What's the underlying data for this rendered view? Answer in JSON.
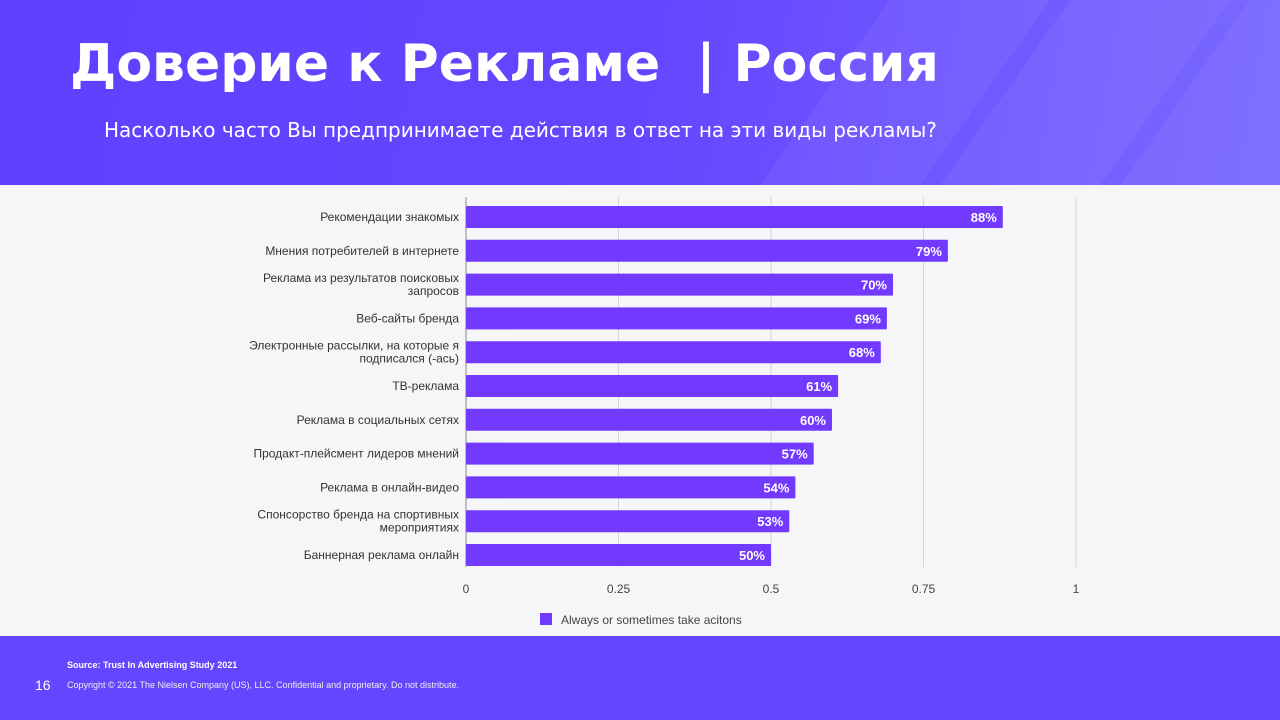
{
  "header": {
    "title": "Доверие к Рекламе  | Россия",
    "subtitle": "Насколько часто Вы предпринимаете действия в ответ на эти виды рекламы?"
  },
  "footer": {
    "source": "Source: Trust In Advertising Study 2021",
    "copyright": "Copyright © 2021 The Nielsen Company (US), LLC. Confidential and proprietary. Do not distribute.",
    "page_number": "16"
  },
  "colors": {
    "bar": "#7239fe",
    "header": "#6446ff"
  },
  "chart_data": {
    "type": "bar",
    "orientation": "horizontal",
    "categories": [
      [
        "Рекомендации знакомых"
      ],
      [
        "Мнения потребителей в интернете"
      ],
      [
        "Реклама из результатов поисковых",
        "запросов"
      ],
      [
        "Веб-сайты бренда"
      ],
      [
        "Электронные рассылки, на которые я",
        "подписался (-ась)"
      ],
      [
        "ТВ-реклама"
      ],
      [
        "Реклама в социальных сетях"
      ],
      [
        "Продакт-плейсмент лидеров мнений"
      ],
      [
        "Реклама в онлайн-видео"
      ],
      [
        "Спонсорство бренда на спортивных",
        "мероприятиях"
      ],
      [
        "Баннерная реклама онлайн"
      ]
    ],
    "series": [
      {
        "name": "Always or sometimes take acitons",
        "values": [
          0.88,
          0.79,
          0.7,
          0.69,
          0.68,
          0.61,
          0.6,
          0.57,
          0.54,
          0.53,
          0.5
        ],
        "labels": [
          "88%",
          "79%",
          "70%",
          "69%",
          "68%",
          "61%",
          "60%",
          "57%",
          "54%",
          "53%",
          "50%"
        ]
      }
    ],
    "xlim": [
      0,
      1
    ],
    "xticks": [
      0,
      0.25,
      0.5,
      0.75,
      1
    ],
    "xtick_labels": [
      "0",
      "0.25",
      "0.5",
      "0.75",
      "1"
    ],
    "grid": true,
    "legend": "bottom-center"
  }
}
